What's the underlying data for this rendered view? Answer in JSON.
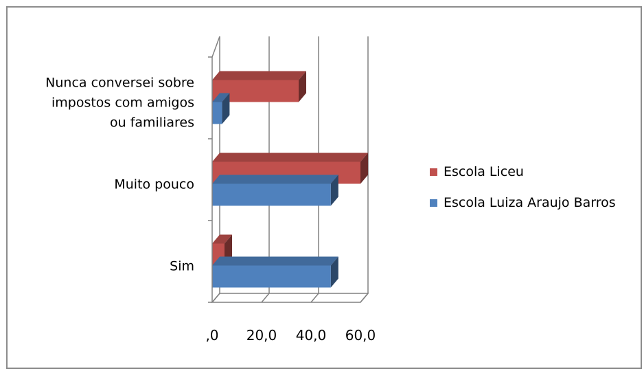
{
  "chart_data": {
    "type": "bar",
    "orientation": "horizontal",
    "style": "3d",
    "categories": [
      [
        "Nunca conversei sobre",
        "impostos com amigos",
        "ou familiares"
      ],
      [
        "Muito pouco"
      ],
      [
        "Sim"
      ]
    ],
    "series": [
      {
        "name": "Escola Liceu",
        "color": "#c0504d",
        "values": [
          35,
          60,
          5
        ]
      },
      {
        "name": "Escola Luiza Araujo Barros",
        "color": "#4f81bd",
        "values": [
          4,
          48,
          48
        ]
      }
    ],
    "xticks": [
      ",0",
      "20,0",
      "40,0",
      "60,0"
    ],
    "xlim": [
      0,
      60
    ],
    "grid": true,
    "legend_position": "right"
  }
}
